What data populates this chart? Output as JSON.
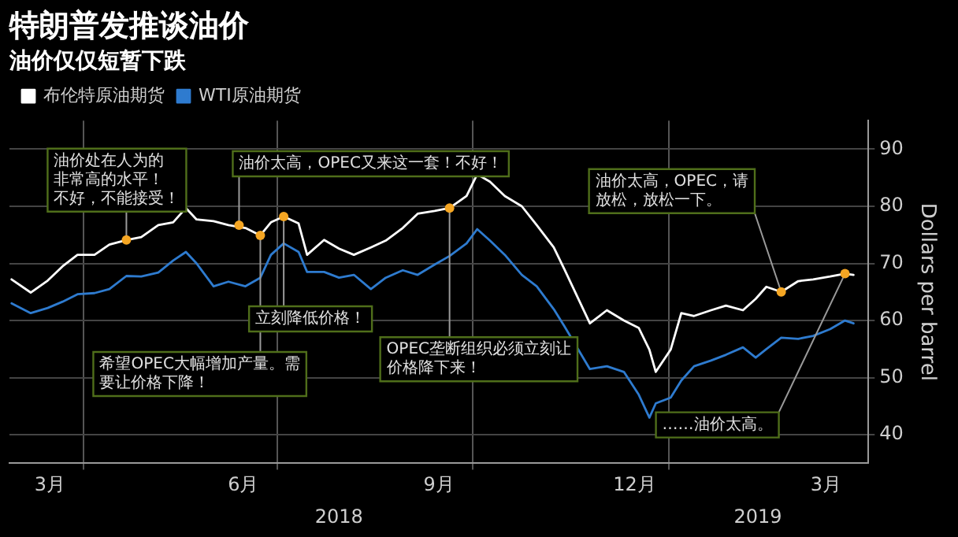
{
  "chart_data": {
    "type": "line",
    "title": "特朗普发推谈油价",
    "subtitle": "油价仅仅短暂下跌",
    "ylabel": "Dollars per barrel",
    "x": [
      "2018-02-26",
      "2018-03-07",
      "2018-03-15",
      "2018-03-22",
      "2018-03-29",
      "2018-04-06",
      "2018-04-13",
      "2018-04-21",
      "2018-04-28",
      "2018-05-06",
      "2018-05-13",
      "2018-05-19",
      "2018-05-24",
      "2018-06-01",
      "2018-06-08",
      "2018-06-16",
      "2018-06-23",
      "2018-06-28",
      "2018-07-04",
      "2018-07-11",
      "2018-07-15",
      "2018-07-23",
      "2018-07-30",
      "2018-08-06",
      "2018-08-14",
      "2018-08-21",
      "2018-08-29",
      "2018-09-05",
      "2018-09-13",
      "2018-09-20",
      "2018-09-28",
      "2018-10-03",
      "2018-10-09",
      "2018-10-16",
      "2018-10-24",
      "2018-10-31",
      "2018-11-08",
      "2018-11-13",
      "2018-11-25",
      "2018-12-03",
      "2018-12-11",
      "2018-12-18",
      "2018-12-23",
      "2018-12-26",
      "2019-01-02",
      "2019-01-07",
      "2019-01-13",
      "2019-01-21",
      "2019-01-28",
      "2019-02-05",
      "2019-02-11",
      "2019-02-16",
      "2019-02-23",
      "2019-03-03",
      "2019-03-10",
      "2019-03-18",
      "2019-03-25",
      "2019-03-29"
    ],
    "series": [
      {
        "name": "布伦特原油期货",
        "color": "#ffffff",
        "values": [
          67.2,
          64.9,
          67,
          69.5,
          71.5,
          71.5,
          73.3,
          74.1,
          74.6,
          76.7,
          77.2,
          79.7,
          77.7,
          77.4,
          76.7,
          76.2,
          74.9,
          77.2,
          78.2,
          77,
          71.5,
          74.1,
          72.6,
          71.5,
          72.8,
          74,
          76.2,
          78.7,
          79.2,
          79.7,
          81.8,
          85.6,
          84.3,
          81.8,
          80,
          76.7,
          72.8,
          69,
          59.5,
          61.8,
          60,
          58.7,
          54.9,
          51,
          54.9,
          61.3,
          60.8,
          61.8,
          62.6,
          61.8,
          63.8,
          65.9,
          65,
          66.9,
          67.2,
          67.7,
          68.2,
          68
        ]
      },
      {
        "name": "WTI原油期货",
        "color": "#2e7bcf",
        "values": [
          63,
          61.3,
          62.2,
          63.3,
          64.6,
          64.8,
          65.5,
          67.8,
          67.7,
          68.4,
          70.5,
          72,
          70,
          66,
          66.8,
          66,
          67.5,
          71.5,
          73.5,
          72,
          68.5,
          68.5,
          67.5,
          68,
          65.5,
          67.5,
          68.8,
          68,
          69.8,
          71.3,
          73.5,
          76,
          74,
          71.5,
          68,
          66,
          62,
          59,
          51.5,
          52,
          51,
          47,
          43,
          45.5,
          46.5,
          49.5,
          52,
          53,
          54,
          55.3,
          53.5,
          55,
          57,
          56.8,
          57.3,
          58.5,
          60,
          59.5
        ]
      }
    ],
    "xlim": [
      "2018-02-25",
      "2019-04-05"
    ],
    "xticks": [
      {
        "value": "2018-03-16",
        "label": "3月"
      },
      {
        "value": "2018-04-01",
        "label": null
      },
      {
        "value": "2018-06-15",
        "label": "6月"
      },
      {
        "value": "2018-07-01",
        "label": null
      },
      {
        "value": "2018-09-15",
        "label": "9月"
      },
      {
        "value": "2018-10-01",
        "label": null
      },
      {
        "value": "2018-12-16",
        "label": "12月"
      },
      {
        "value": "2019-01-01",
        "label": null
      },
      {
        "value": "2019-03-16",
        "label": "3月"
      }
    ],
    "x2lim": [
      "2018-02-25",
      "2019-04-05"
    ],
    "x2ticks": [
      {
        "value": "2018-07-30",
        "label": "2018"
      },
      {
        "value": "2019-02-12",
        "label": "2019"
      }
    ],
    "ylim": [
      35,
      95
    ],
    "yticks": [
      40,
      50,
      60,
      70,
      80,
      90
    ],
    "grid": true,
    "legend": "top left",
    "marker": "none",
    "line_style": "solid",
    "annotations": [
      {
        "text": "油价处在人为的非常高的水平！不好，不能接受！",
        "x": "2018-04-21",
        "y": 74.1
      },
      {
        "text": "油价太高，OPEC又来这一套！不好！",
        "x": "2018-06-13",
        "y": 76.7
      },
      {
        "text": "希望OPEC大幅增加产量。需要让价格下降！",
        "x": "2018-06-23",
        "y": 74.9
      },
      {
        "text": "立刻降低价格！",
        "x": "2018-07-04",
        "y": 78.2
      },
      {
        "text": "OPEC垄断组织必须立刻让价格降下来！",
        "x": "2018-09-20",
        "y": 79.7
      },
      {
        "text": "油价太高，OPEC，请放松，放松一下。",
        "x": "2019-02-23",
        "y": 65
      },
      {
        "text": "……油价太高。",
        "x": "2019-03-25",
        "y": 68.2
      }
    ]
  }
}
